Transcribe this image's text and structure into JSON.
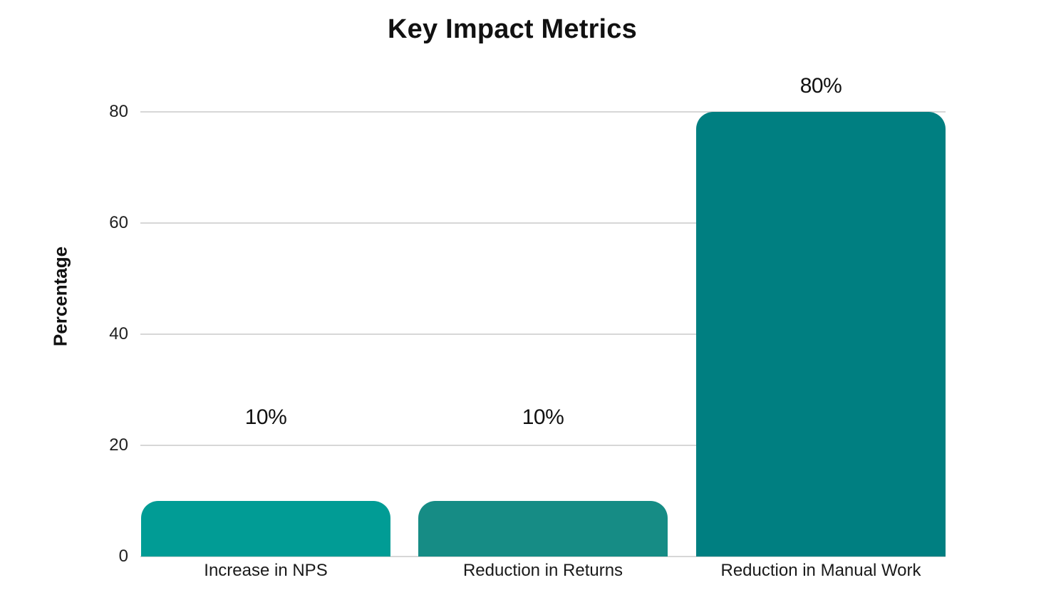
{
  "chart_data": {
    "type": "bar",
    "title": "Key Impact Metrics",
    "xlabel": "",
    "ylabel": "Percentage",
    "categories": [
      "Increase in NPS",
      "Reduction in Returns",
      "Reduction in Manual Work"
    ],
    "values": [
      10,
      10,
      80
    ],
    "value_labels": [
      "10%",
      "10%",
      "80%"
    ],
    "bar_colors": [
      "#019C95",
      "#168C85",
      "#007F81"
    ],
    "yticks": [
      0,
      20,
      40,
      60,
      80
    ],
    "ylim": [
      0,
      80
    ],
    "grid": "horizontal",
    "gridline_color": "#d7d7d7",
    "background_color": "#ffffff",
    "legend_position": "none"
  }
}
